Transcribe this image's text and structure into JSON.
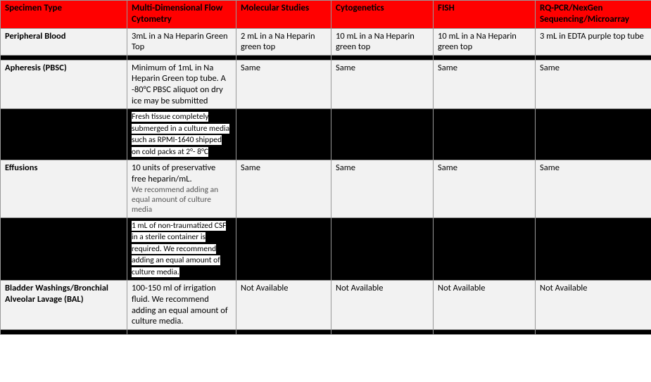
{
  "header_bg": "#ff0000",
  "columns": [
    "Specimen Type",
    "Multi-Dimensional Flow Cytometry",
    "Molecular Studies",
    "Cytogenetics",
    "FISH",
    "RQ-PCR/NexGen Sequencing/Microarray"
  ],
  "rows": [
    {
      "band": "light",
      "cells": [
        "Peripheral Blood",
        "3mL in a Na Heparin Green Top",
        "2 mL in a Na Heparin green top",
        "10 mL in a Na Heparin green top",
        "10 mL in a Na Heparin green top",
        "3 mL in EDTA purple top tube"
      ]
    },
    {
      "band": "dark",
      "cells": [
        "",
        "",
        "",
        "",
        "",
        ""
      ]
    },
    {
      "band": "light",
      "cells": [
        "Apheresis (PBSC)",
        "Minimum of 1mL in Na Heparin Green top tube. A -80°C PBSC aliquot on dry ice may be submitted",
        "Same",
        "Same",
        "Same",
        "Same"
      ]
    },
    {
      "band": "dark",
      "cells": [
        "",
        "Fresh tissue completely submerged in a culture media such as RPMI-1640 shipped on cold packs at 2°- 8°C",
        "",
        "",
        "",
        ""
      ],
      "highlight_col1": true
    },
    {
      "band": "light",
      "cells": [
        "Effusions",
        "10 units of preservative free heparin/mL.",
        "Same",
        "Same",
        "Same",
        "Same"
      ],
      "subnote_col1": "We recommend adding an equal amount of culture media"
    },
    {
      "band": "dark",
      "cells": [
        "",
        "1 mL of non-traumatized CSF in a sterile container is required. We recommend adding an equal amount of culture media.",
        "",
        "",
        "",
        ""
      ],
      "highlight_col1": true
    },
    {
      "band": "light",
      "cells": [
        "Bladder Washings/Bronchial Alveolar Lavage (BAL)",
        "100-150 ml of irrigation fluid.  We recommend adding an equal amount of culture media.",
        "Not Available",
        "Not Available",
        "Not Available",
        "Not Available"
      ]
    },
    {
      "band": "dark",
      "cells": [
        "",
        "",
        "",
        "",
        "",
        ""
      ]
    }
  ]
}
